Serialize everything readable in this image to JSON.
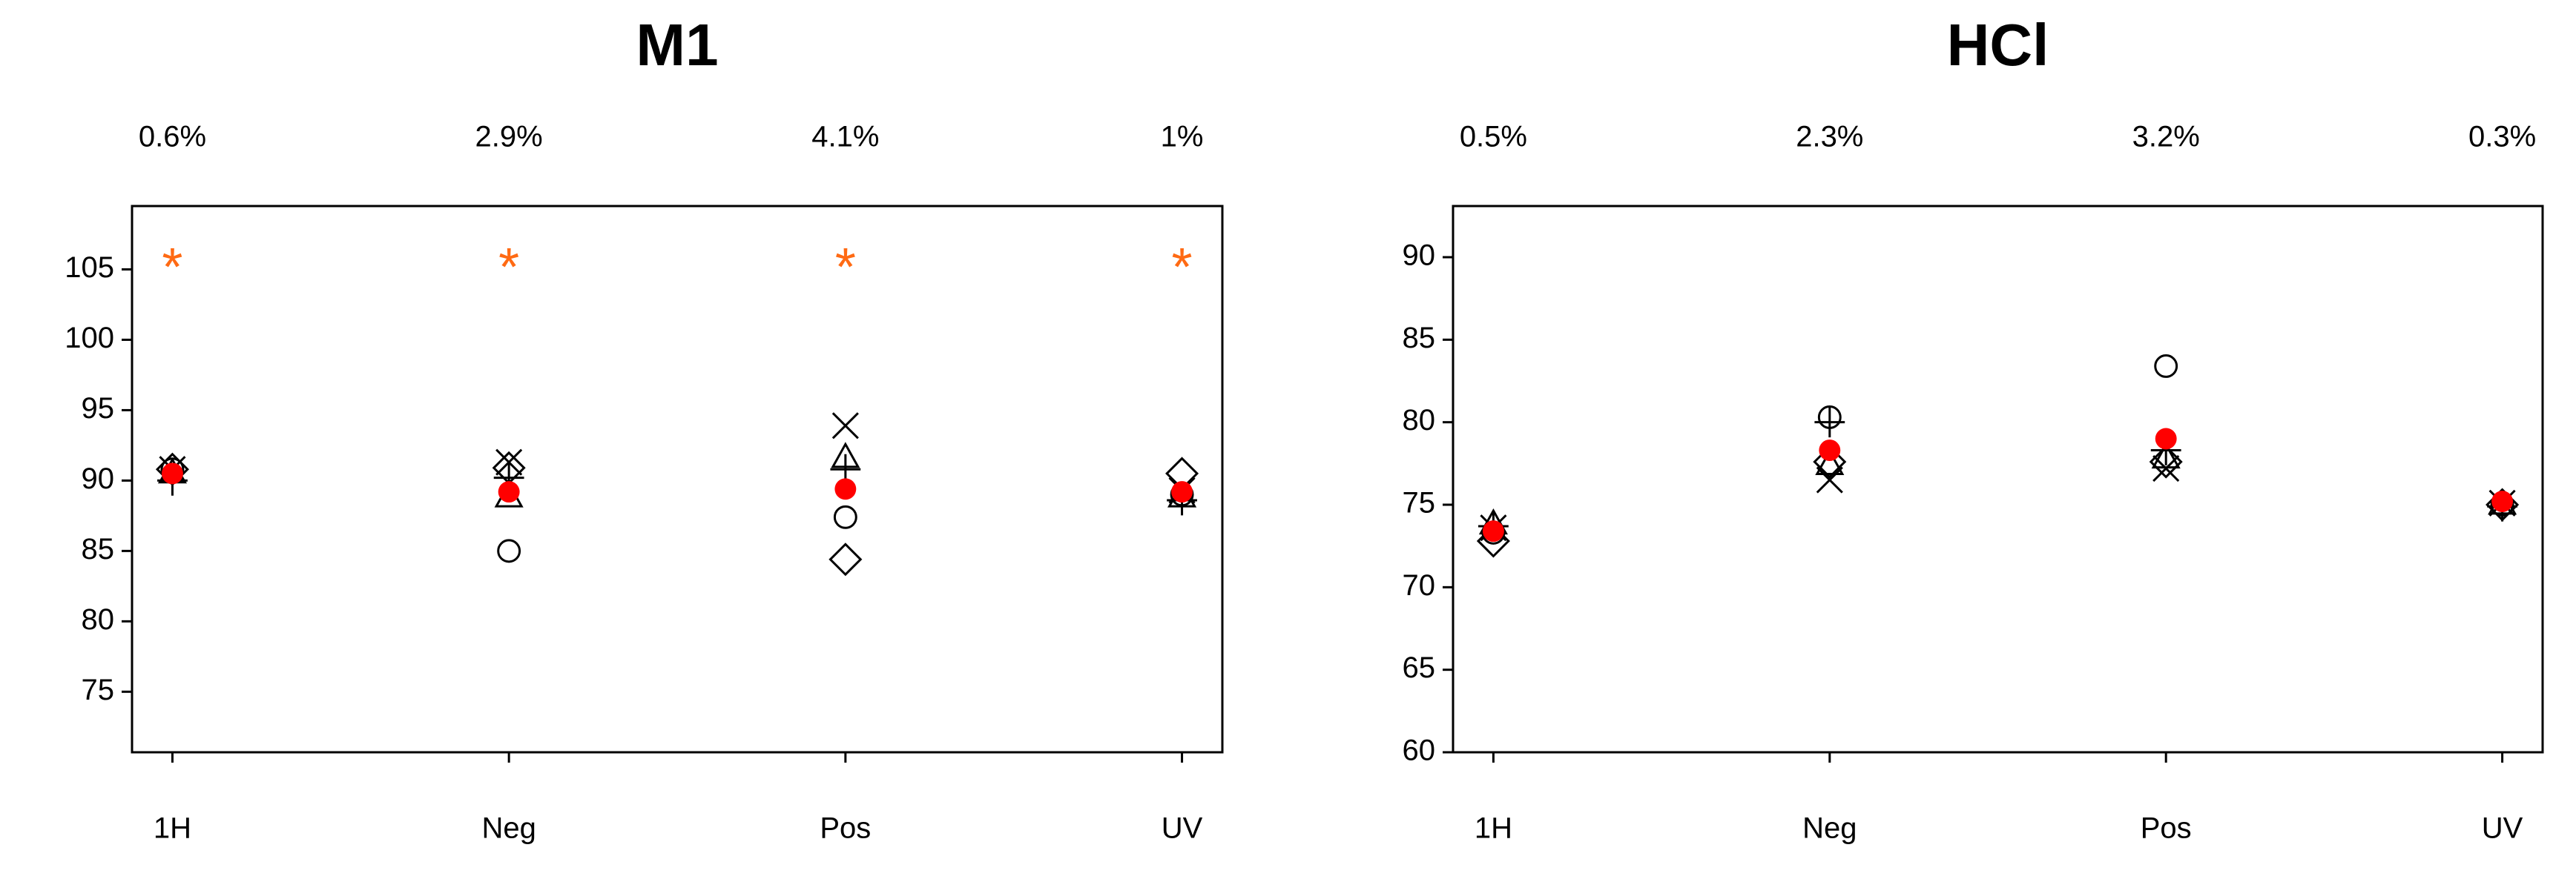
{
  "chart_data": [
    {
      "type": "scatter",
      "title": "M1",
      "categories": [
        "1H",
        "Neg",
        "Pos",
        "UV"
      ],
      "top_labels": [
        "0.6%",
        "2.9%",
        "4.1%",
        "1%"
      ],
      "ylim": [
        70.7,
        109.5
      ],
      "yticks": [
        75,
        80,
        85,
        90,
        95,
        100,
        105
      ],
      "series": [
        {
          "marker": "circle",
          "color": "#000000",
          "values": [
            90.8,
            85.0,
            87.4,
            89.0
          ]
        },
        {
          "marker": "triangle",
          "color": "#000000",
          "values": [
            90.5,
            88.8,
            91.6,
            88.8
          ]
        },
        {
          "marker": "plus",
          "color": "#000000",
          "values": [
            90.0,
            90.2,
            90.8,
            88.6
          ]
        },
        {
          "marker": "cross",
          "color": "#000000",
          "values": [
            90.8,
            91.3,
            93.9,
            89.3
          ]
        },
        {
          "marker": "diamond",
          "color": "#000000",
          "values": [
            90.8,
            90.9,
            84.4,
            90.5
          ]
        },
        {
          "marker": "dot",
          "color": "#ff0000",
          "values": [
            90.5,
            89.2,
            89.4,
            89.2
          ]
        }
      ],
      "stars": {
        "label": "*",
        "color": "#ff6a13",
        "values": [
          105.5,
          105.5,
          105.5,
          105.5
        ]
      }
    },
    {
      "type": "scatter",
      "title": "HCl",
      "categories": [
        "1H",
        "Neg",
        "Pos",
        "UV"
      ],
      "top_labels": [
        "0.5%",
        "2.3%",
        "3.2%",
        "0.3%"
      ],
      "ylim": [
        60,
        93.1
      ],
      "yticks": [
        60,
        65,
        70,
        75,
        80,
        85,
        90
      ],
      "series": [
        {
          "marker": "circle",
          "color": "#000000",
          "values": [
            73.3,
            80.3,
            83.4,
            75.0
          ]
        },
        {
          "marker": "triangle",
          "color": "#000000",
          "values": [
            73.8,
            77.4,
            77.8,
            75.0
          ]
        },
        {
          "marker": "plus",
          "color": "#000000",
          "values": [
            73.7,
            80.0,
            78.3,
            74.9
          ]
        },
        {
          "marker": "cross",
          "color": "#000000",
          "values": [
            73.6,
            76.5,
            77.2,
            75.1
          ]
        },
        {
          "marker": "diamond",
          "color": "#000000",
          "values": [
            72.8,
            77.6,
            77.6,
            75.0
          ]
        },
        {
          "marker": "dot",
          "color": "#ff0000",
          "values": [
            73.4,
            78.3,
            79.0,
            75.2
          ]
        }
      ]
    }
  ]
}
